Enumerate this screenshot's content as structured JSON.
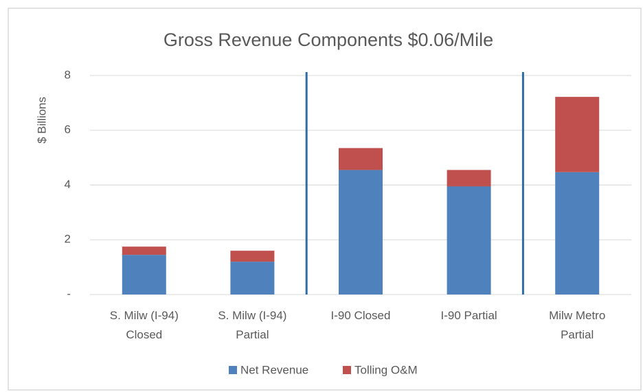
{
  "chart_data": {
    "type": "stacked_bar",
    "title": "Gross Revenue Components $0.06/Mile",
    "y_label": "$ Billions",
    "categories": [
      "S. Milw (I-94)\nClosed",
      "S. Milw (I-94)\nPartial",
      "I-90 Closed",
      "I-90 Partial",
      "Milw Metro\nPartial"
    ],
    "series": [
      {
        "name": "Net Revenue",
        "color": "#4f81bd",
        "values": [
          1.45,
          1.2,
          4.55,
          3.95,
          4.47
        ]
      },
      {
        "name": "Tolling O&M",
        "color": "#c0504d",
        "values": [
          0.3,
          0.4,
          0.8,
          0.6,
          2.75
        ]
      }
    ],
    "ylim": [
      0,
      8
    ],
    "yticks": [
      {
        "value": 0,
        "label": "-"
      },
      2,
      4,
      6,
      8
    ],
    "grid": true,
    "legend": "bottom"
  }
}
